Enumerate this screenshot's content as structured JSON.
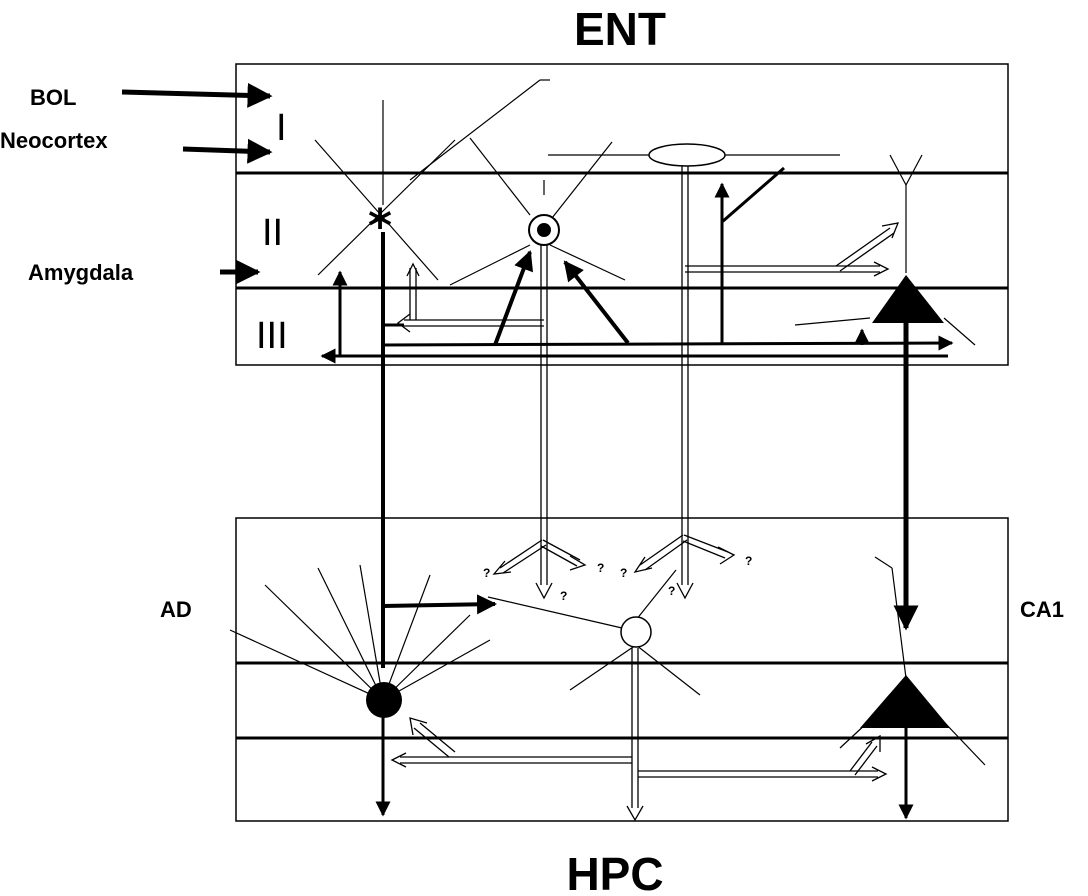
{
  "titles": {
    "top": "ENT",
    "bottom": "HPC"
  },
  "input_labels": {
    "bol": "BOL",
    "neocortex": "Neocortex",
    "amygdala": "Amygdala"
  },
  "layer_labels": {
    "layer_1": "I",
    "layer_2": "II",
    "layer_3": "III"
  },
  "region_labels": {
    "left": "AD",
    "right": "CA1"
  },
  "uncertain_mark": "?"
}
